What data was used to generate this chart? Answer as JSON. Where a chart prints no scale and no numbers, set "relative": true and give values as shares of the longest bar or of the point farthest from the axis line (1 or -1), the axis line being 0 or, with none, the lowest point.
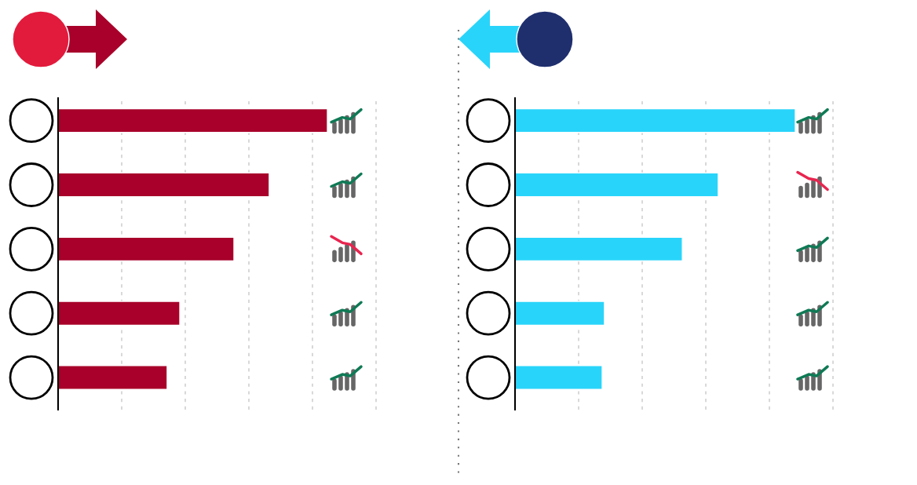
{
  "chart_data": [
    {
      "type": "bar",
      "orientation": "horizontal",
      "relative": true,
      "grid": "x",
      "tick_labels": false,
      "categories": [
        null,
        null,
        null,
        null,
        null
      ],
      "series": [
        {
          "color": "#a8002a",
          "values": [
            1,
            0.784,
            0.653,
            0.452,
            0.405
          ]
        }
      ]
    },
    {
      "type": "bar",
      "orientation": "horizontal",
      "relative": true,
      "grid": "x",
      "tick_labels": false,
      "categories": [
        null,
        null,
        null,
        null,
        null
      ],
      "series": [
        {
          "color": "#29d4fa",
          "values": [
            1,
            0.725,
            0.597,
            0.319,
            0.311
          ]
        }
      ]
    }
  ]
}
